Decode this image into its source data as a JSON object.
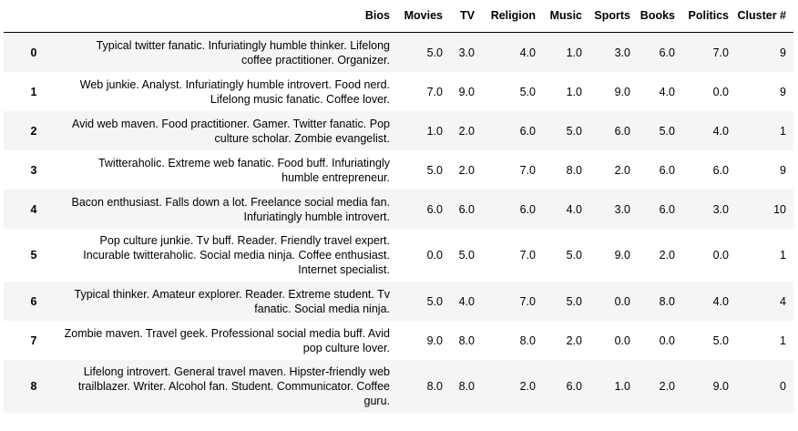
{
  "table": {
    "columns": [
      "",
      "Bios",
      "Movies",
      "TV",
      "Religion",
      "Music",
      "Sports",
      "Books",
      "Politics",
      "Cluster #"
    ],
    "rows": [
      {
        "index": "0",
        "bios": "Typical twitter fanatic. Infuriatingly humble thinker. Lifelong coffee practitioner. Organizer.",
        "movies": "5.0",
        "tv": "3.0",
        "religion": "4.0",
        "music": "1.0",
        "sports": "3.0",
        "books": "6.0",
        "politics": "7.0",
        "cluster": "9"
      },
      {
        "index": "1",
        "bios": "Web junkie. Analyst. Infuriatingly humble introvert. Food nerd. Lifelong music fanatic. Coffee lover.",
        "movies": "7.0",
        "tv": "9.0",
        "religion": "5.0",
        "music": "1.0",
        "sports": "9.0",
        "books": "4.0",
        "politics": "0.0",
        "cluster": "9"
      },
      {
        "index": "2",
        "bios": "Avid web maven. Food practitioner. Gamer. Twitter fanatic. Pop culture scholar. Zombie evangelist.",
        "movies": "1.0",
        "tv": "2.0",
        "religion": "6.0",
        "music": "5.0",
        "sports": "6.0",
        "books": "5.0",
        "politics": "4.0",
        "cluster": "1"
      },
      {
        "index": "3",
        "bios": "Twitteraholic. Extreme web fanatic. Food buff. Infuriatingly humble entrepreneur.",
        "movies": "5.0",
        "tv": "2.0",
        "religion": "7.0",
        "music": "8.0",
        "sports": "2.0",
        "books": "6.0",
        "politics": "6.0",
        "cluster": "9"
      },
      {
        "index": "4",
        "bios": "Bacon enthusiast. Falls down a lot. Freelance social media fan. Infuriatingly humble introvert.",
        "movies": "6.0",
        "tv": "6.0",
        "religion": "6.0",
        "music": "4.0",
        "sports": "3.0",
        "books": "6.0",
        "politics": "3.0",
        "cluster": "10"
      },
      {
        "index": "5",
        "bios": "Pop culture junkie. Tv buff. Reader. Friendly travel expert. Incurable twitteraholic. Social media ninja. Coffee enthusiast. Internet specialist.",
        "movies": "0.0",
        "tv": "5.0",
        "religion": "7.0",
        "music": "5.0",
        "sports": "9.0",
        "books": "2.0",
        "politics": "0.0",
        "cluster": "1"
      },
      {
        "index": "6",
        "bios": "Typical thinker. Amateur explorer. Reader. Extreme student. Tv fanatic. Social media ninja.",
        "movies": "5.0",
        "tv": "4.0",
        "religion": "7.0",
        "music": "5.0",
        "sports": "0.0",
        "books": "8.0",
        "politics": "4.0",
        "cluster": "4"
      },
      {
        "index": "7",
        "bios": "Zombie maven. Travel geek. Professional social media buff. Avid pop culture lover.",
        "movies": "9.0",
        "tv": "8.0",
        "religion": "8.0",
        "music": "2.0",
        "sports": "0.0",
        "books": "0.0",
        "politics": "5.0",
        "cluster": "1"
      },
      {
        "index": "8",
        "bios": "Lifelong introvert. General travel maven. Hipster-friendly web trailblazer. Writer. Alcohol fan. Student. Communicator. Coffee guru.",
        "movies": "8.0",
        "tv": "8.0",
        "religion": "2.0",
        "music": "6.0",
        "sports": "1.0",
        "books": "2.0",
        "politics": "9.0",
        "cluster": "0"
      }
    ]
  }
}
